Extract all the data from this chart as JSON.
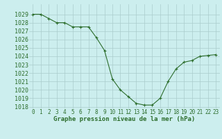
{
  "x": [
    0,
    1,
    2,
    3,
    4,
    5,
    6,
    7,
    8,
    9,
    10,
    11,
    12,
    13,
    14,
    15,
    16,
    17,
    18,
    19,
    20,
    21,
    22,
    23
  ],
  "y": [
    1029.0,
    1029.0,
    1028.5,
    1028.0,
    1028.0,
    1027.5,
    1027.5,
    1027.5,
    1026.2,
    1024.7,
    1021.3,
    1020.0,
    1019.2,
    1018.4,
    1018.2,
    1018.2,
    1019.0,
    1021.0,
    1022.5,
    1023.3,
    1023.5,
    1024.0,
    1024.1,
    1024.2
  ],
  "line_color": "#2d6e2d",
  "marker_color": "#2d6e2d",
  "bg_color": "#cceeee",
  "grid_color": "#aacccc",
  "xlabel": "Graphe pression niveau de la mer (hPa)",
  "xlabel_fontsize": 6.5,
  "ylabel_fontsize": 6,
  "tick_fontsize": 5.5,
  "ylim": [
    1018,
    1030
  ],
  "xlim": [
    -0.5,
    23.5
  ],
  "yticks": [
    1018,
    1019,
    1020,
    1021,
    1022,
    1023,
    1024,
    1025,
    1026,
    1027,
    1028,
    1029
  ],
  "xticks": [
    0,
    1,
    2,
    3,
    4,
    5,
    6,
    7,
    8,
    9,
    10,
    11,
    12,
    13,
    14,
    15,
    16,
    17,
    18,
    19,
    20,
    21,
    22,
    23
  ]
}
